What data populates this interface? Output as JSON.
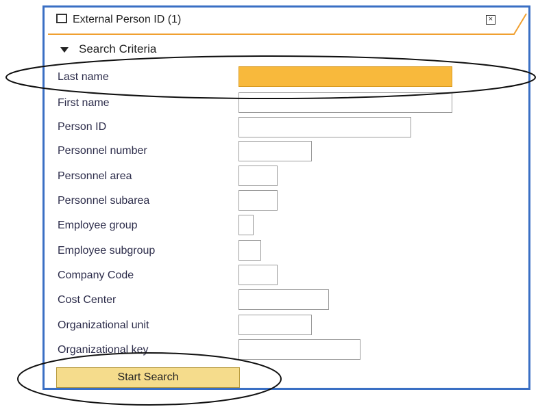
{
  "header": {
    "title": "External Person ID (1)"
  },
  "section": {
    "title": "Search Criteria"
  },
  "fields": [
    {
      "label": "Last name"
    },
    {
      "label": "First name"
    },
    {
      "label": "Person ID"
    },
    {
      "label": "Personnel number"
    },
    {
      "label": "Personnel area"
    },
    {
      "label": "Personnel subarea"
    },
    {
      "label": "Employee group"
    },
    {
      "label": "Employee subgroup"
    },
    {
      "label": "Company Code"
    },
    {
      "label": "Cost Center"
    },
    {
      "label": "Organizational unit"
    },
    {
      "label": "Organizational key"
    }
  ],
  "button": {
    "label": "Start Search"
  }
}
